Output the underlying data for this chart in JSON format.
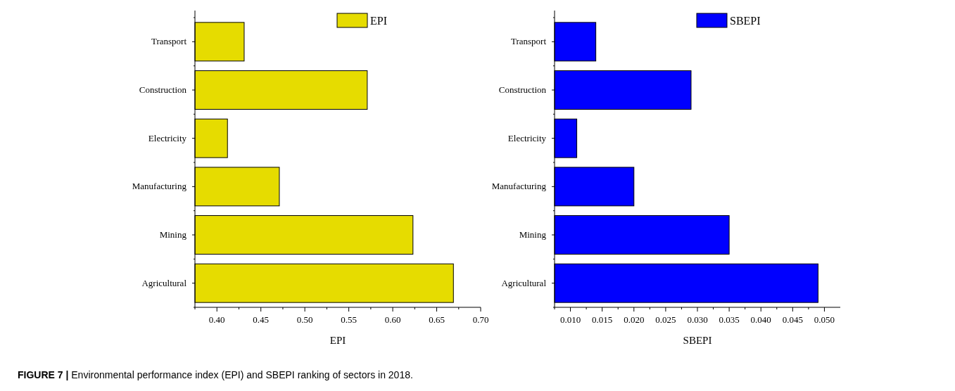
{
  "chart_data": [
    {
      "type": "bar",
      "orientation": "horizontal",
      "xlabel": "EPI",
      "categories": [
        "Transport",
        "Construction",
        "Electricity",
        "Manufacturing",
        "Mining",
        "Agricultural"
      ],
      "series": [
        {
          "name": "EPI",
          "color": "#e6dc00",
          "values": [
            0.431,
            0.571,
            0.412,
            0.471,
            0.623,
            0.669
          ]
        }
      ],
      "xlim": [
        0.375,
        0.7
      ],
      "xticks": [
        {
          "value": 0.375,
          "label": null
        },
        {
          "value": 0.4,
          "label": "0.40"
        },
        {
          "value": 0.425,
          "label": null
        },
        {
          "value": 0.45,
          "label": "0.45"
        },
        {
          "value": 0.475,
          "label": null
        },
        {
          "value": 0.5,
          "label": "0.50"
        },
        {
          "value": 0.525,
          "label": null
        },
        {
          "value": 0.55,
          "label": "0.55"
        },
        {
          "value": 0.575,
          "label": null
        },
        {
          "value": 0.6,
          "label": "0.60"
        },
        {
          "value": 0.625,
          "label": null
        },
        {
          "value": 0.65,
          "label": "0.65"
        },
        {
          "value": 0.675,
          "label": null
        },
        {
          "value": 0.7,
          "label": "0.70"
        }
      ],
      "legend": "top right",
      "grid": false,
      "annotations": [
        "FIGURE 7 | Environmental performance index (EPI) and SBEPI ranking of sectors in 2018."
      ]
    },
    {
      "type": "bar",
      "orientation": "horizontal",
      "xlabel": "SBEPI",
      "categories": [
        "Transport",
        "Construction",
        "Electricity",
        "Manufacturing",
        "Mining",
        "Agricultural"
      ],
      "series": [
        {
          "name": "SBEPI",
          "color": "#0000ff",
          "values": [
            0.014,
            0.029,
            0.011,
            0.02,
            0.035,
            0.049
          ]
        }
      ],
      "xlim": [
        0.0075,
        0.0525
      ],
      "xticks": [
        {
          "value": 0.0075,
          "label": null
        },
        {
          "value": 0.01,
          "label": "0.010"
        },
        {
          "value": 0.0125,
          "label": null
        },
        {
          "value": 0.015,
          "label": "0.015"
        },
        {
          "value": 0.0175,
          "label": null
        },
        {
          "value": 0.02,
          "label": "0.020"
        },
        {
          "value": 0.0225,
          "label": null
        },
        {
          "value": 0.025,
          "label": "0.025"
        },
        {
          "value": 0.0275,
          "label": null
        },
        {
          "value": 0.03,
          "label": "0.030"
        },
        {
          "value": 0.0325,
          "label": null
        },
        {
          "value": 0.035,
          "label": "0.035"
        },
        {
          "value": 0.0375,
          "label": null
        },
        {
          "value": 0.04,
          "label": "0.040"
        },
        {
          "value": 0.0425,
          "label": null
        },
        {
          "value": 0.045,
          "label": "0.045"
        },
        {
          "value": 0.0475,
          "label": null
        },
        {
          "value": 0.05,
          "label": "0.050"
        }
      ],
      "legend": "top right",
      "grid": false
    }
  ]
}
